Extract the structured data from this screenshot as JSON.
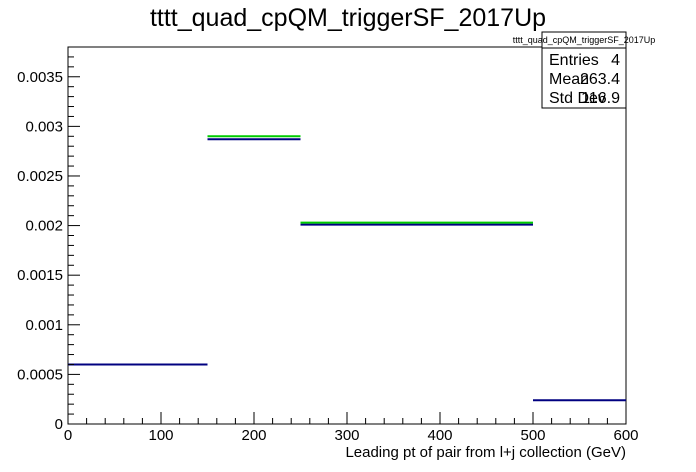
{
  "chart_data": {
    "type": "bar",
    "title": "tttt_quad_cpQM_triggerSF_2017Up",
    "xlabel": "Leading pt of pair from l+j collection (GeV)",
    "ylabel": "",
    "xlim": [
      0,
      600
    ],
    "ylim": [
      0,
      0.0038
    ],
    "x_ticks": [
      0,
      100,
      200,
      300,
      400,
      500,
      600
    ],
    "x_tick_labels": [
      "0",
      "100",
      "200",
      "300",
      "400",
      "500",
      "600"
    ],
    "y_ticks": [
      0,
      0.0005,
      0.001,
      0.0015,
      0.002,
      0.0025,
      0.003,
      0.0035
    ],
    "y_tick_labels": [
      "0",
      "0.0005",
      "0.001",
      "0.0015",
      "0.002",
      "0.0025",
      "0.003",
      "0.0035"
    ],
    "grid": false,
    "series": [
      {
        "color": "#000080",
        "bins": [
          {
            "x0": 0,
            "x1": 150,
            "value": 0.0006
          },
          {
            "x0": 150,
            "x1": 250,
            "value": 0.00287
          },
          {
            "x0": 250,
            "x1": 500,
            "value": 0.00201
          },
          {
            "x0": 500,
            "x1": 600,
            "value": 0.00024
          }
        ]
      },
      {
        "color": "#00cc00",
        "bins": [
          {
            "x0": 150,
            "x1": 250,
            "value": 0.0029
          },
          {
            "x0": 250,
            "x1": 500,
            "value": 0.00203
          }
        ]
      }
    ],
    "stats_box": {
      "name": "tttt_quad_cpQM_triggerSF_2017Up",
      "rows": [
        {
          "label": "Entries",
          "value": "4"
        },
        {
          "label": "Mean",
          "value": "263.4"
        },
        {
          "label": "Std Dev",
          "value": "116.9"
        }
      ],
      "placement": "top-right"
    }
  }
}
